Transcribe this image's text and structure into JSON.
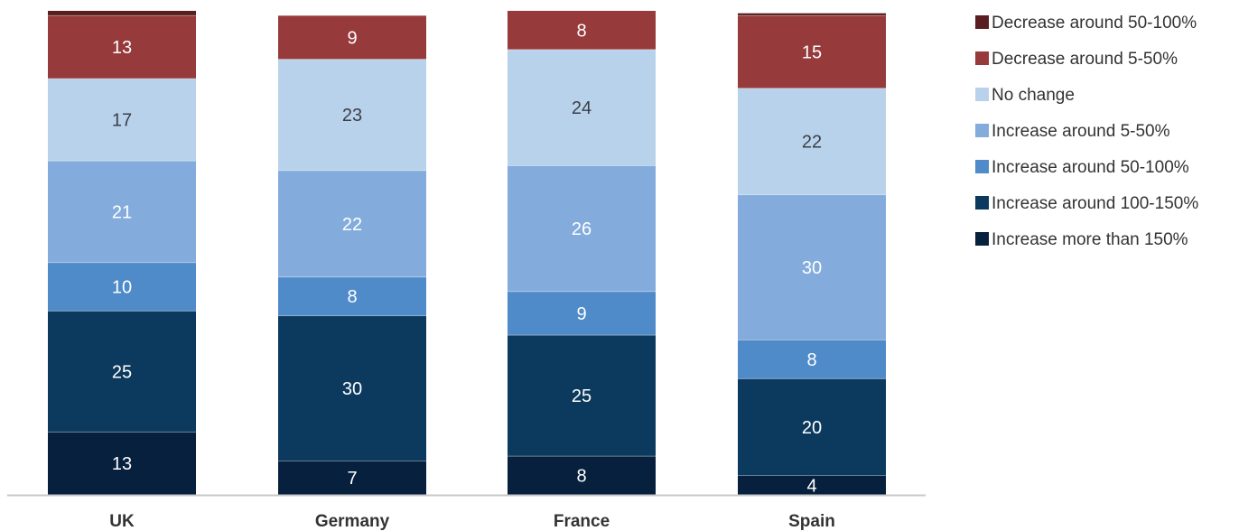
{
  "chart_data": {
    "type": "bar",
    "stacked": true,
    "categories": [
      "UK",
      "Germany",
      "France",
      "Spain"
    ],
    "series": [
      {
        "name": "Increase more than 150%",
        "color": "#06203d",
        "values": [
          13,
          7,
          8,
          4
        ]
      },
      {
        "name": "Increase around 100-150%",
        "color": "#0c3a5e",
        "values": [
          25,
          30,
          25,
          20
        ]
      },
      {
        "name": "Increase around 50-100%",
        "color": "#4f8ac9",
        "values": [
          10,
          8,
          9,
          8
        ]
      },
      {
        "name": "Increase around 5-50%",
        "color": "#83acdd",
        "values": [
          21,
          22,
          26,
          30
        ]
      },
      {
        "name": "No change",
        "color": "#b9d2ec",
        "values": [
          17,
          23,
          24,
          22
        ]
      },
      {
        "name": "Decrease around 5-50%",
        "color": "#963a3b",
        "values": [
          13,
          9,
          8,
          15
        ]
      },
      {
        "name": "Decrease around 50-100%",
        "color": "#5a1e20",
        "values": [
          1,
          0,
          0,
          0.5
        ]
      }
    ],
    "legend_order": [
      "Decrease around 50-100%",
      "Decrease around 5-50%",
      "No change",
      "Increase around 5-50%",
      "Increase around 50-100%",
      "Increase around 100-150%",
      "Increase more than 150%"
    ],
    "legend_position": "right",
    "ylim": [
      0,
      100
    ],
    "grid": false,
    "title": "",
    "xlabel": "",
    "ylabel": ""
  }
}
